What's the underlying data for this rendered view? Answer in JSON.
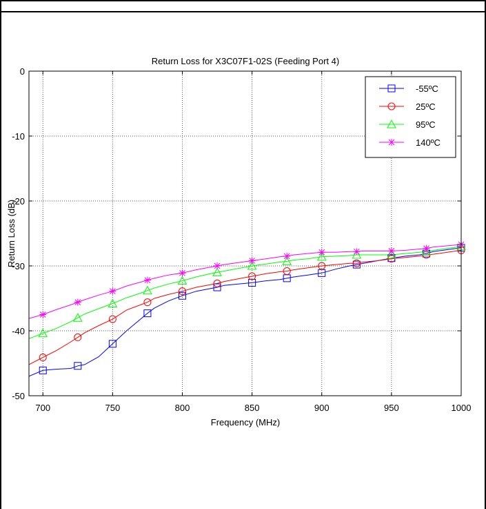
{
  "chart_data": {
    "type": "line",
    "title": "Return Loss for X3C07F1-02S (Feeding Port 4)",
    "xlabel": "Frequency (MHz)",
    "ylabel": "Return Loss (dB)",
    "xlim": [
      690,
      1000
    ],
    "ylim": [
      -50,
      0
    ],
    "x_ticks": [
      700,
      750,
      800,
      850,
      900,
      950,
      1000
    ],
    "y_ticks": [
      0,
      -10,
      -20,
      -30,
      -40,
      -50
    ],
    "grid": true,
    "legend_position": "top-right",
    "line_x": [
      690,
      700,
      710,
      720,
      725,
      730,
      740,
      750,
      760,
      770,
      775,
      780,
      790,
      800,
      810,
      820,
      825,
      830,
      840,
      850,
      860,
      870,
      875,
      880,
      890,
      900,
      910,
      920,
      925,
      930,
      940,
      950,
      960,
      970,
      975,
      980,
      990,
      1000
    ],
    "marker_x": [
      700,
      725,
      750,
      775,
      800,
      825,
      850,
      875,
      900,
      925,
      950,
      975,
      1000
    ],
    "series": [
      {
        "name": "-55ºC",
        "marker": "square",
        "color": "#0000ff",
        "line": [
          -47.0,
          -46.1,
          -45.9,
          -45.8,
          -45.4,
          -45.2,
          -44.0,
          -42.0,
          -40.0,
          -38.2,
          -37.3,
          -36.5,
          -35.4,
          -34.6,
          -33.9,
          -33.5,
          -33.3,
          -33.0,
          -32.8,
          -32.6,
          -32.3,
          -32.1,
          -31.9,
          -31.7,
          -31.4,
          -31.1,
          -30.5,
          -30.0,
          -29.8,
          -29.6,
          -29.2,
          -28.8,
          -28.5,
          -28.3,
          -28.1,
          -27.8,
          -27.5,
          -27.2
        ],
        "markers": [
          -46.1,
          -45.4,
          -42.0,
          -37.3,
          -34.6,
          -33.3,
          -32.6,
          -31.9,
          -31.1,
          -29.8,
          -28.8,
          -28.1,
          -27.2
        ]
      },
      {
        "name": "25ºC",
        "marker": "circle",
        "color": "#ff0000",
        "line": [
          -45.2,
          -44.1,
          -43.0,
          -41.7,
          -41.0,
          -40.3,
          -39.2,
          -38.2,
          -36.8,
          -36.0,
          -35.6,
          -35.0,
          -34.4,
          -33.9,
          -33.3,
          -32.9,
          -32.7,
          -32.4,
          -32.0,
          -31.6,
          -31.2,
          -30.9,
          -30.8,
          -30.6,
          -30.3,
          -30.0,
          -29.8,
          -29.6,
          -29.6,
          -29.4,
          -29.2,
          -28.9,
          -28.7,
          -28.5,
          -28.3,
          -28.2,
          -27.9,
          -27.6
        ],
        "markers": [
          -44.1,
          -41.0,
          -38.2,
          -35.6,
          -33.9,
          -32.7,
          -31.6,
          -30.8,
          -30.0,
          -29.6,
          -28.9,
          -28.3,
          -27.6
        ]
      },
      {
        "name": "95ºC",
        "marker": "triangle",
        "color": "#00ff00",
        "line": [
          -41.2,
          -40.4,
          -39.6,
          -38.6,
          -38.0,
          -37.4,
          -36.6,
          -35.8,
          -34.9,
          -34.2,
          -33.8,
          -33.4,
          -32.8,
          -32.3,
          -31.7,
          -31.2,
          -31.0,
          -30.8,
          -30.4,
          -30.0,
          -29.7,
          -29.4,
          -29.3,
          -29.1,
          -28.9,
          -28.6,
          -28.5,
          -28.4,
          -28.3,
          -28.3,
          -28.3,
          -28.3,
          -28.1,
          -27.9,
          -27.8,
          -27.6,
          -27.3,
          -27.0
        ],
        "markers": [
          -40.4,
          -38.0,
          -35.8,
          -33.8,
          -32.3,
          -31.0,
          -30.0,
          -29.3,
          -28.6,
          -28.3,
          -28.3,
          -27.8,
          -27.0
        ]
      },
      {
        "name": "140ºC",
        "marker": "star",
        "color": "#ff00ff",
        "line": [
          -38.1,
          -37.5,
          -36.7,
          -36.0,
          -35.6,
          -35.2,
          -34.5,
          -33.9,
          -33.1,
          -32.5,
          -32.2,
          -31.9,
          -31.4,
          -31.1,
          -30.6,
          -30.2,
          -30.0,
          -29.8,
          -29.5,
          -29.2,
          -28.9,
          -28.6,
          -28.5,
          -28.3,
          -28.1,
          -27.9,
          -27.9,
          -27.8,
          -27.8,
          -27.7,
          -27.7,
          -27.7,
          -27.6,
          -27.4,
          -27.3,
          -27.1,
          -26.9,
          -26.7
        ],
        "markers": [
          -37.5,
          -35.6,
          -33.9,
          -32.2,
          -31.1,
          -30.0,
          -29.2,
          -28.5,
          -27.9,
          -27.8,
          -27.7,
          -27.3,
          -26.7
        ]
      }
    ]
  }
}
